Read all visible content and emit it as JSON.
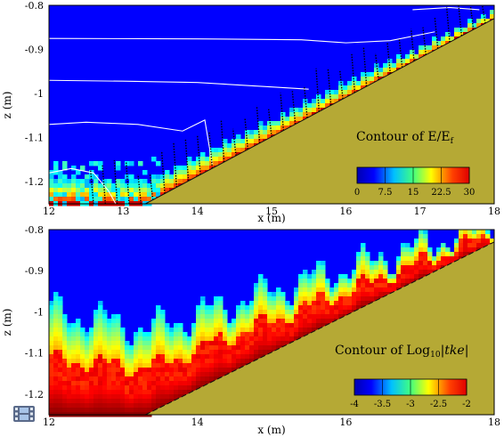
{
  "colors": {
    "sand": "#b5a935",
    "background": "#ffffff",
    "jet": [
      "#00008f",
      "#0000ff",
      "#0080ff",
      "#00ffff",
      "#80ff80",
      "#ffff00",
      "#ff8000",
      "#ff0000",
      "#800000"
    ]
  },
  "chart_data": [
    {
      "type": "heatmap",
      "title": "Contour of E/E",
      "title_subscript": "f",
      "xlabel": "x (m)",
      "ylabel": "z (m)",
      "xlim": [
        12,
        18
      ],
      "ylim": [
        -1.25,
        -0.8
      ],
      "x_ticks": [
        12,
        13,
        14,
        15,
        16,
        17,
        18
      ],
      "y_ticks": [
        -0.8,
        -0.9,
        -1,
        -1.1,
        -1.2
      ],
      "bed_line": [
        [
          13.3,
          -1.25
        ],
        [
          18,
          -0.83
        ]
      ],
      "colorbar": {
        "min": 0,
        "max": 30,
        "ticks": [
          "0",
          "7.5",
          "15",
          "22.5",
          "30"
        ]
      },
      "overlays": [
        "white contour lines",
        "black velocity vectors"
      ],
      "grid": false
    },
    {
      "type": "heatmap",
      "title": "Contour of Log",
      "title_subscript": "10",
      "title_suffix": "|",
      "title_italic": "tke",
      "title_end": "|",
      "xlabel": "x (m)",
      "ylabel": "z (m)",
      "xlim": [
        12,
        18
      ],
      "ylim": [
        -1.25,
        -0.8
      ],
      "x_ticks": [
        12,
        14,
        16,
        18
      ],
      "y_ticks": [
        -0.8,
        -0.9,
        -1,
        -1.1,
        -1.2
      ],
      "bed_line": [
        [
          13.3,
          -1.25
        ],
        [
          18,
          -0.83
        ]
      ],
      "colorbar": {
        "min": -4,
        "max": -2,
        "ticks": [
          "-4",
          "-3.5",
          "-3",
          "-2.5",
          "-2"
        ]
      },
      "grid": false
    }
  ]
}
